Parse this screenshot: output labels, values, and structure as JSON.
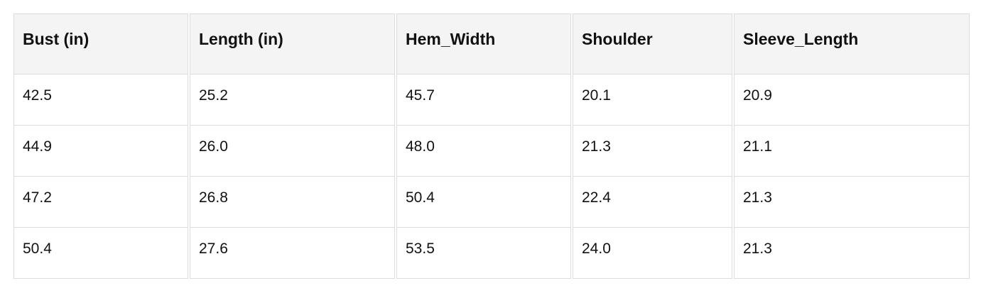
{
  "table": {
    "headers": [
      "Bust (in)",
      "Length (in)",
      "Hem_Width",
      "Shoulder",
      "Sleeve_Length"
    ],
    "rows": [
      [
        "42.5",
        "25.2",
        "45.7",
        "20.1",
        "20.9"
      ],
      [
        "44.9",
        "26.0",
        "48.0",
        "21.3",
        "21.1"
      ],
      [
        "47.2",
        "26.8",
        "50.4",
        "22.4",
        "21.3"
      ],
      [
        "50.4",
        "27.6",
        "53.5",
        "24.0",
        "21.3"
      ]
    ]
  }
}
